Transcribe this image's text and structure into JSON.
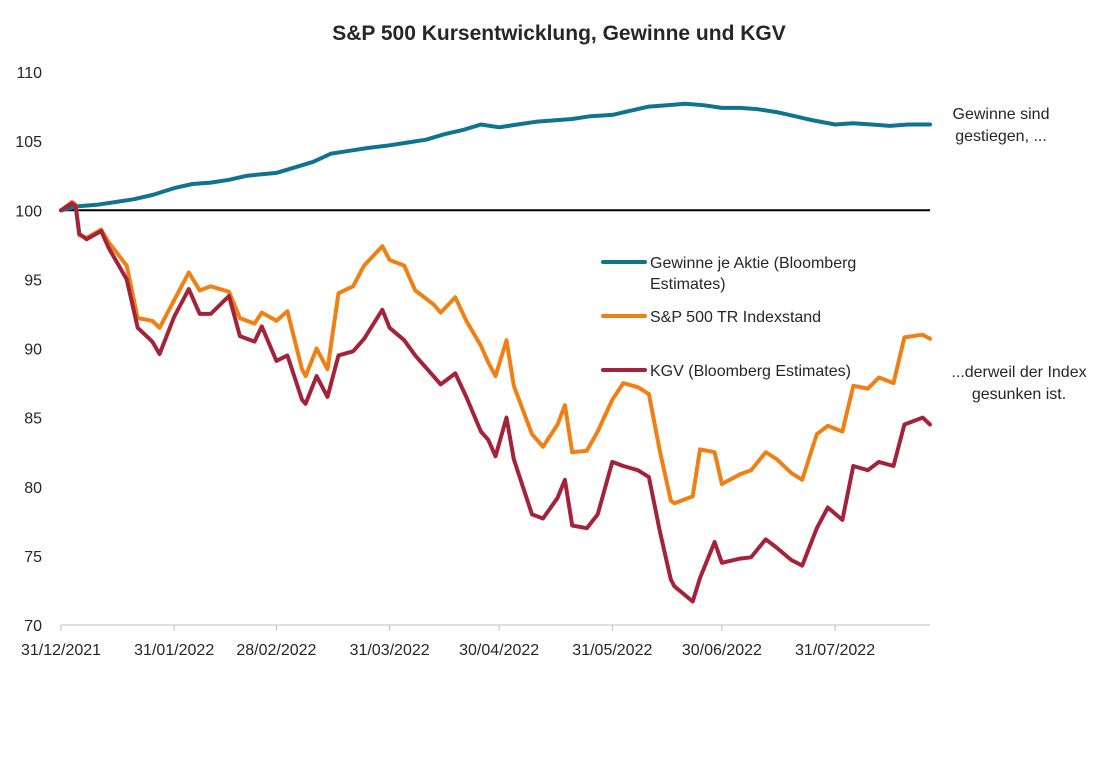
{
  "chart_data": {
    "type": "line",
    "title": "S&P 500 Kursentwicklung, Gewinne und KGV",
    "xlabel": "",
    "ylabel": "",
    "ylim": [
      70,
      110
    ],
    "yticks": [
      "110",
      "105",
      "100",
      "95",
      "90",
      "85",
      "80",
      "75",
      "70"
    ],
    "xticks": [
      "31/12/2021",
      "31/01/2022",
      "28/02/2022",
      "31/03/2022",
      "30/04/2022",
      "31/05/2022",
      "30/06/2022",
      "31/07/2022"
    ],
    "xlim": [
      "2021-12-31",
      "2022-08-26"
    ],
    "reference_line": 100,
    "legend": {
      "placement": "center-right",
      "entries": [
        {
          "lines": [
            "Gewinne je Aktie (Bloomberg",
            "Estimates)"
          ],
          "color": "#0e7490"
        },
        {
          "lines": [
            "S&P 500 TR Indexstand"
          ],
          "color": "#f07f14"
        },
        {
          "lines": [
            "KGV (Bloomberg Estimates)"
          ],
          "color": "#a3233a"
        }
      ]
    },
    "annotations": [
      {
        "lines": [
          "Gewinne sind",
          "gestiegen, ..."
        ]
      },
      {
        "lines": [
          "...derweil der Index",
          "gesunken ist."
        ]
      }
    ],
    "series": [
      {
        "name": "Gewinne je Aktie (Bloomberg Estimates)",
        "color": "#0e7490",
        "points": [
          [
            "2021-12-31",
            100.0
          ],
          [
            "2022-01-05",
            100.3
          ],
          [
            "2022-01-10",
            100.4
          ],
          [
            "2022-01-15",
            100.6
          ],
          [
            "2022-01-20",
            100.8
          ],
          [
            "2022-01-25",
            101.1
          ],
          [
            "2022-01-31",
            101.6
          ],
          [
            "2022-02-05",
            101.9
          ],
          [
            "2022-02-10",
            102.0
          ],
          [
            "2022-02-15",
            102.2
          ],
          [
            "2022-02-20",
            102.5
          ],
          [
            "2022-02-28",
            102.7
          ],
          [
            "2022-03-05",
            103.1
          ],
          [
            "2022-03-10",
            103.5
          ],
          [
            "2022-03-15",
            104.1
          ],
          [
            "2022-03-20",
            104.3
          ],
          [
            "2022-03-25",
            104.5
          ],
          [
            "2022-03-31",
            104.7
          ],
          [
            "2022-04-05",
            104.9
          ],
          [
            "2022-04-10",
            105.1
          ],
          [
            "2022-04-15",
            105.5
          ],
          [
            "2022-04-20",
            105.8
          ],
          [
            "2022-04-25",
            106.2
          ],
          [
            "2022-04-30",
            106.0
          ],
          [
            "2022-05-05",
            106.2
          ],
          [
            "2022-05-10",
            106.4
          ],
          [
            "2022-05-15",
            106.5
          ],
          [
            "2022-05-20",
            106.6
          ],
          [
            "2022-05-25",
            106.8
          ],
          [
            "2022-05-31",
            106.9
          ],
          [
            "2022-06-05",
            107.2
          ],
          [
            "2022-06-10",
            107.5
          ],
          [
            "2022-06-15",
            107.6
          ],
          [
            "2022-06-20",
            107.7
          ],
          [
            "2022-06-25",
            107.6
          ],
          [
            "2022-06-30",
            107.4
          ],
          [
            "2022-07-05",
            107.4
          ],
          [
            "2022-07-10",
            107.3
          ],
          [
            "2022-07-15",
            107.1
          ],
          [
            "2022-07-20",
            106.8
          ],
          [
            "2022-07-25",
            106.5
          ],
          [
            "2022-07-31",
            106.2
          ],
          [
            "2022-08-05",
            106.3
          ],
          [
            "2022-08-10",
            106.2
          ],
          [
            "2022-08-15",
            106.1
          ],
          [
            "2022-08-20",
            106.2
          ],
          [
            "2022-08-26",
            106.2
          ]
        ]
      },
      {
        "name": "S&P 500 TR Indexstand",
        "color": "#f07f14",
        "points": [
          [
            "2021-12-31",
            100.0
          ],
          [
            "2022-01-03",
            100.6
          ],
          [
            "2022-01-04",
            100.4
          ],
          [
            "2022-01-05",
            98.2
          ],
          [
            "2022-01-07",
            98.0
          ],
          [
            "2022-01-11",
            98.6
          ],
          [
            "2022-01-13",
            97.7
          ],
          [
            "2022-01-18",
            96.0
          ],
          [
            "2022-01-21",
            92.2
          ],
          [
            "2022-01-25",
            92.0
          ],
          [
            "2022-01-27",
            91.5
          ],
          [
            "2022-01-31",
            93.5
          ],
          [
            "2022-02-04",
            95.5
          ],
          [
            "2022-02-07",
            94.2
          ],
          [
            "2022-02-10",
            94.5
          ],
          [
            "2022-02-15",
            94.1
          ],
          [
            "2022-02-18",
            92.2
          ],
          [
            "2022-02-22",
            91.8
          ],
          [
            "2022-02-24",
            92.6
          ],
          [
            "2022-02-28",
            92.0
          ],
          [
            "2022-03-03",
            92.7
          ],
          [
            "2022-03-07",
            88.5
          ],
          [
            "2022-03-08",
            88.0
          ],
          [
            "2022-03-11",
            90.0
          ],
          [
            "2022-03-14",
            88.5
          ],
          [
            "2022-03-17",
            94.0
          ],
          [
            "2022-03-21",
            94.5
          ],
          [
            "2022-03-24",
            96.0
          ],
          [
            "2022-03-29",
            97.4
          ],
          [
            "2022-03-31",
            96.4
          ],
          [
            "2022-04-04",
            96.0
          ],
          [
            "2022-04-07",
            94.2
          ],
          [
            "2022-04-12",
            93.2
          ],
          [
            "2022-04-14",
            92.6
          ],
          [
            "2022-04-18",
            93.7
          ],
          [
            "2022-04-21",
            92.0
          ],
          [
            "2022-04-25",
            90.2
          ],
          [
            "2022-04-27",
            89.0
          ],
          [
            "2022-04-29",
            88.0
          ],
          [
            "2022-05-02",
            90.6
          ],
          [
            "2022-05-04",
            87.3
          ],
          [
            "2022-05-09",
            83.8
          ],
          [
            "2022-05-12",
            82.9
          ],
          [
            "2022-05-16",
            84.5
          ],
          [
            "2022-05-18",
            85.9
          ],
          [
            "2022-05-20",
            82.5
          ],
          [
            "2022-05-24",
            82.6
          ],
          [
            "2022-05-27",
            84.0
          ],
          [
            "2022-05-31",
            86.3
          ],
          [
            "2022-06-03",
            87.5
          ],
          [
            "2022-06-07",
            87.2
          ],
          [
            "2022-06-10",
            86.7
          ],
          [
            "2022-06-13",
            82.6
          ],
          [
            "2022-06-16",
            79.0
          ],
          [
            "2022-06-17",
            78.8
          ],
          [
            "2022-06-22",
            79.3
          ],
          [
            "2022-06-24",
            82.7
          ],
          [
            "2022-06-28",
            82.5
          ],
          [
            "2022-06-30",
            80.2
          ],
          [
            "2022-07-05",
            80.9
          ],
          [
            "2022-07-08",
            81.2
          ],
          [
            "2022-07-12",
            82.5
          ],
          [
            "2022-07-15",
            82.0
          ],
          [
            "2022-07-19",
            81.0
          ],
          [
            "2022-07-22",
            80.5
          ],
          [
            "2022-07-26",
            83.8
          ],
          [
            "2022-07-29",
            84.4
          ],
          [
            "2022-08-02",
            84.0
          ],
          [
            "2022-08-05",
            87.3
          ],
          [
            "2022-08-09",
            87.1
          ],
          [
            "2022-08-12",
            87.9
          ],
          [
            "2022-08-16",
            87.5
          ],
          [
            "2022-08-19",
            90.8
          ],
          [
            "2022-08-24",
            91.0
          ],
          [
            "2022-08-26",
            90.7
          ]
        ]
      },
      {
        "name": "KGV (Bloomberg Estimates)",
        "color": "#a3233a",
        "points": [
          [
            "2021-12-31",
            100.0
          ],
          [
            "2022-01-03",
            100.5
          ],
          [
            "2022-01-04",
            100.3
          ],
          [
            "2022-01-05",
            98.3
          ],
          [
            "2022-01-07",
            97.9
          ],
          [
            "2022-01-11",
            98.5
          ],
          [
            "2022-01-13",
            97.3
          ],
          [
            "2022-01-18",
            95.0
          ],
          [
            "2022-01-21",
            91.5
          ],
          [
            "2022-01-25",
            90.5
          ],
          [
            "2022-01-27",
            89.6
          ],
          [
            "2022-01-31",
            92.3
          ],
          [
            "2022-02-04",
            94.3
          ],
          [
            "2022-02-07",
            92.5
          ],
          [
            "2022-02-10",
            92.5
          ],
          [
            "2022-02-15",
            93.8
          ],
          [
            "2022-02-18",
            90.9
          ],
          [
            "2022-02-22",
            90.5
          ],
          [
            "2022-02-24",
            91.6
          ],
          [
            "2022-02-28",
            89.1
          ],
          [
            "2022-03-03",
            89.5
          ],
          [
            "2022-03-07",
            86.3
          ],
          [
            "2022-03-08",
            86.0
          ],
          [
            "2022-03-11",
            88.0
          ],
          [
            "2022-03-14",
            86.5
          ],
          [
            "2022-03-17",
            89.5
          ],
          [
            "2022-03-21",
            89.8
          ],
          [
            "2022-03-24",
            90.7
          ],
          [
            "2022-03-29",
            92.8
          ],
          [
            "2022-03-31",
            91.5
          ],
          [
            "2022-04-04",
            90.6
          ],
          [
            "2022-04-07",
            89.5
          ],
          [
            "2022-04-12",
            88.0
          ],
          [
            "2022-04-14",
            87.4
          ],
          [
            "2022-04-18",
            88.2
          ],
          [
            "2022-04-21",
            86.5
          ],
          [
            "2022-04-25",
            84.0
          ],
          [
            "2022-04-27",
            83.4
          ],
          [
            "2022-04-29",
            82.2
          ],
          [
            "2022-05-02",
            85.0
          ],
          [
            "2022-05-04",
            82.0
          ],
          [
            "2022-05-09",
            78.0
          ],
          [
            "2022-05-12",
            77.7
          ],
          [
            "2022-05-16",
            79.2
          ],
          [
            "2022-05-18",
            80.5
          ],
          [
            "2022-05-20",
            77.2
          ],
          [
            "2022-05-24",
            77.0
          ],
          [
            "2022-05-27",
            78.0
          ],
          [
            "2022-05-31",
            81.8
          ],
          [
            "2022-06-03",
            81.5
          ],
          [
            "2022-06-07",
            81.2
          ],
          [
            "2022-06-10",
            80.7
          ],
          [
            "2022-06-13",
            76.8
          ],
          [
            "2022-06-16",
            73.3
          ],
          [
            "2022-06-17",
            72.8
          ],
          [
            "2022-06-22",
            71.7
          ],
          [
            "2022-06-24",
            73.4
          ],
          [
            "2022-06-28",
            76.0
          ],
          [
            "2022-06-30",
            74.5
          ],
          [
            "2022-07-05",
            74.8
          ],
          [
            "2022-07-08",
            74.9
          ],
          [
            "2022-07-12",
            76.2
          ],
          [
            "2022-07-15",
            75.6
          ],
          [
            "2022-07-19",
            74.7
          ],
          [
            "2022-07-22",
            74.3
          ],
          [
            "2022-07-26",
            77.0
          ],
          [
            "2022-07-29",
            78.5
          ],
          [
            "2022-08-02",
            77.6
          ],
          [
            "2022-08-05",
            81.5
          ],
          [
            "2022-08-09",
            81.2
          ],
          [
            "2022-08-12",
            81.8
          ],
          [
            "2022-08-16",
            81.5
          ],
          [
            "2022-08-19",
            84.5
          ],
          [
            "2022-08-24",
            85.0
          ],
          [
            "2022-08-26",
            84.5
          ]
        ]
      }
    ]
  }
}
